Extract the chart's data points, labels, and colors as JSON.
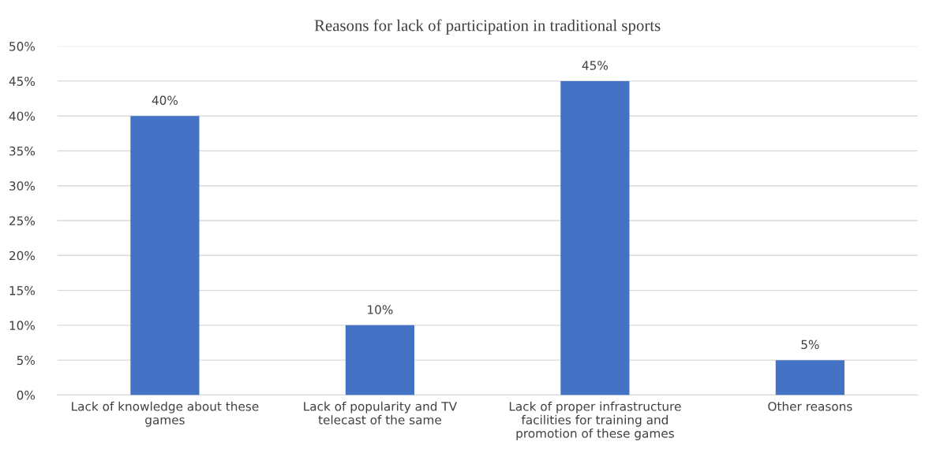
{
  "chart_data": {
    "type": "bar",
    "title": "Reasons for lack of participation in traditional sports",
    "categories": [
      "Lack of knowledge about these games",
      "Lack of popularity and TV telecast of the same",
      "Lack of proper infrastructure facilities for training and promotion of these games",
      "Other reasons"
    ],
    "values": [
      40,
      10,
      45,
      5
    ],
    "color": "#4472c4",
    "value_labels": [
      "40%",
      "10%",
      "45%",
      "5%"
    ],
    "ylim": [
      0,
      50
    ],
    "yticks": [
      {
        "value": 0,
        "label": "0%"
      },
      {
        "value": 5,
        "label": "5%"
      },
      {
        "value": 10,
        "label": "10%"
      },
      {
        "value": 15,
        "label": "15%"
      },
      {
        "value": 20,
        "label": "20%"
      },
      {
        "value": 25,
        "label": "25%"
      },
      {
        "value": 30,
        "label": "30%"
      },
      {
        "value": 35,
        "label": "35%"
      },
      {
        "value": 40,
        "label": "40%"
      },
      {
        "value": 45,
        "label": "45%"
      },
      {
        "value": 50,
        "label": "50%"
      }
    ],
    "grid": "y"
  }
}
